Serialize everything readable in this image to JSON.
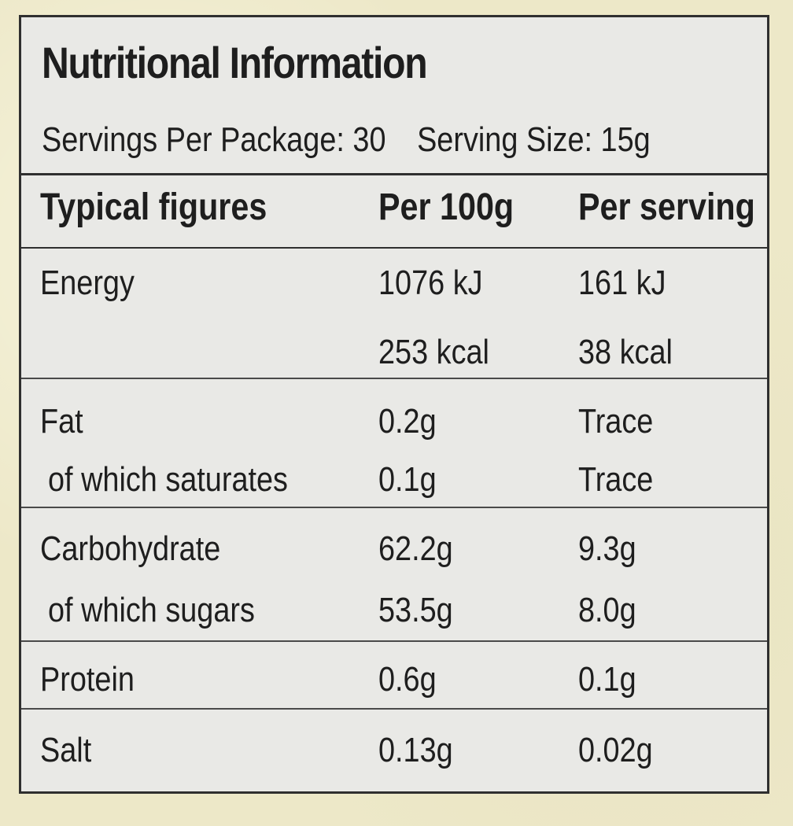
{
  "panel": {
    "title": "Nutritional Information",
    "servings_per_package": "Servings Per Package: 30",
    "serving_size": "Serving Size: 15g"
  },
  "table": {
    "headers": [
      "Typical figures",
      "Per 100g",
      "Per serving"
    ],
    "rows": [
      {
        "label": "Energy",
        "per_100g": "1076 kJ",
        "per_serving": "161 kJ"
      },
      {
        "label": "",
        "per_100g": "253 kcal",
        "per_serving": "38 kcal"
      },
      {
        "label": "Fat",
        "per_100g": "0.2g",
        "per_serving": "Trace"
      },
      {
        "label": "of which saturates",
        "per_100g": "0.1g",
        "per_serving": "Trace"
      },
      {
        "label": "Carbohydrate",
        "per_100g": "62.2g",
        "per_serving": "9.3g"
      },
      {
        "label": "of which sugars",
        "per_100g": "53.5g",
        "per_serving": "8.0g"
      },
      {
        "label": "Protein",
        "per_100g": "0.6g",
        "per_serving": "0.1g"
      },
      {
        "label": "Salt",
        "per_100g": "0.13g",
        "per_serving": "0.02g"
      }
    ]
  },
  "colors": {
    "background": "#ede8c8",
    "panel": "#e9e9e6",
    "ink": "#1e1e1e",
    "rule": "#2f2f2f"
  }
}
